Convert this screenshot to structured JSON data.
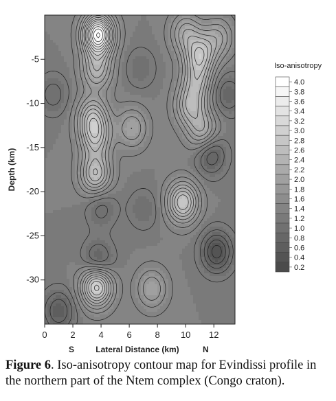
{
  "chart_data": {
    "type": "heatmap",
    "title": "",
    "xlabel": "Lateral Distance (km)",
    "ylabel": "Depth (km)",
    "xlim": [
      0,
      13.5
    ],
    "ylim": [
      -35,
      0
    ],
    "x_ticks": [
      "0",
      "2",
      "4",
      "6",
      "8",
      "10",
      "12"
    ],
    "y_ticks": [
      "-5",
      "-10",
      "-15",
      "-20",
      "-25",
      "-30"
    ],
    "x_end_labels": {
      "left": "S",
      "right": "N"
    },
    "colorbar": {
      "title": "Iso-anisotropy",
      "levels": [
        "0.2",
        "0.4",
        "0.6",
        "0.8",
        "1.0",
        "1.2",
        "1.4",
        "1.6",
        "1.8",
        "2.0",
        "2.2",
        "2.4",
        "2.6",
        "2.8",
        "3.0",
        "3.2",
        "3.4",
        "3.6",
        "3.8",
        "4.0"
      ]
    },
    "field_features": [
      {
        "x": 3.8,
        "y": -2.2,
        "peak": 4.0
      },
      {
        "x": 3.7,
        "y": -30.7,
        "peak": 3.2
      },
      {
        "x": 3.6,
        "y": -18.0,
        "peak": 2.6
      },
      {
        "x": 3.4,
        "y": -11.5,
        "peak": 2.4
      },
      {
        "x": 3.6,
        "y": -13.9,
        "peak": 2.4
      },
      {
        "x": 3.7,
        "y": -6.2,
        "peak": 2.3
      },
      {
        "x": 9.8,
        "y": -21.2,
        "peak": 2.8
      },
      {
        "x": 10.3,
        "y": -10.3,
        "peak": 2.3
      },
      {
        "x": 11.2,
        "y": -13.1,
        "peak": 2.2
      },
      {
        "x": 11.0,
        "y": -4.5,
        "peak": 2.6
      },
      {
        "x": 10.8,
        "y": -7.5,
        "peak": 2.2
      },
      {
        "x": 6.2,
        "y": -12.8,
        "peak": 2.0
      },
      {
        "x": 7.6,
        "y": -31.0,
        "peak": 2.0
      },
      {
        "x": 10.0,
        "y": -2.0,
        "peak": 2.1
      },
      {
        "x": 12.3,
        "y": -2.5,
        "peak": 2.0
      },
      {
        "x": 12.2,
        "y": -26.8,
        "peak": 0.3
      },
      {
        "x": 11.8,
        "y": -15.8,
        "peak": 0.6
      },
      {
        "x": 3.8,
        "y": -28.0,
        "peak": 0.6
      },
      {
        "x": 4.0,
        "y": -21.8,
        "peak": 0.9
      },
      {
        "x": 1.0,
        "y": -33.5,
        "peak": 0.6
      },
      {
        "x": 0.6,
        "y": -9.0,
        "peak": 0.9
      },
      {
        "x": 6.8,
        "y": -6.0,
        "peak": 1.0
      },
      {
        "x": 7.0,
        "y": -22.0,
        "peak": 1.0
      },
      {
        "x": 13.0,
        "y": -9.0,
        "peak": 0.8
      }
    ],
    "background": 1.3
  },
  "caption": {
    "label": "Figure 6",
    "text": ". Iso-anisotropy contour map for Evindissi profile in the northern part of the Ntem complex (Congo craton)."
  }
}
